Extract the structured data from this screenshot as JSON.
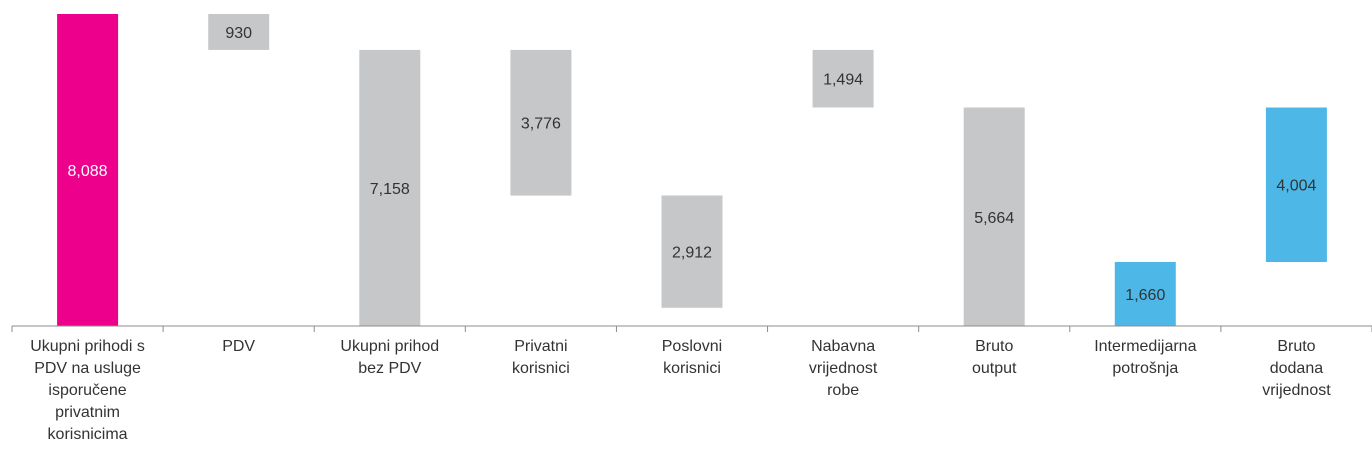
{
  "chart_data": {
    "type": "bar",
    "subtype": "waterfall",
    "title": "",
    "xlabel": "",
    "ylabel": "",
    "ylim": [
      0,
      8088
    ],
    "grid": false,
    "legend": "none",
    "categories": [
      [
        "Ukupni prihodi s",
        "PDV na usluge",
        "isporučene",
        "privatnim",
        "korisnicima"
      ],
      [
        "PDV"
      ],
      [
        "Ukupni prihod",
        "bez PDV"
      ],
      [
        "Privatni",
        "korisnici"
      ],
      [
        "Poslovni",
        "korisnici"
      ],
      [
        "Nabavna",
        "vrijednost",
        "robe"
      ],
      [
        "Bruto",
        "output"
      ],
      [
        "Intermedijarna",
        "potrošnja"
      ],
      [
        "Bruto",
        "dodana",
        "vrijednost"
      ]
    ],
    "bars": [
      {
        "label": "8,088",
        "value": 8088,
        "base": 0,
        "top": 8088,
        "color": "#ec008c",
        "text_color": "#ffffff"
      },
      {
        "label": "930",
        "value": 930,
        "base": 7158,
        "top": 8088,
        "color": "#c6c7c9",
        "text_color": "#333333"
      },
      {
        "label": "7,158",
        "value": 7158,
        "base": 0,
        "top": 7158,
        "color": "#c6c7c9",
        "text_color": "#333333"
      },
      {
        "label": "3,776",
        "value": 3776,
        "base": 3382,
        "top": 7158,
        "color": "#c6c7c9",
        "text_color": "#333333"
      },
      {
        "label": "2,912",
        "value": 2912,
        "base": 470,
        "top": 3382,
        "color": "#c6c7c9",
        "text_color": "#333333"
      },
      {
        "label": "1,494",
        "value": 1494,
        "base": 5664,
        "top": 7158,
        "color": "#c6c7c9",
        "text_color": "#333333"
      },
      {
        "label": "5,664",
        "value": 5664,
        "base": 0,
        "top": 5664,
        "color": "#c6c7c9",
        "text_color": "#333333"
      },
      {
        "label": "1,660",
        "value": 1660,
        "base": 0,
        "top": 1660,
        "color": "#4db8e8",
        "text_color": "#333333"
      },
      {
        "label": "4,004",
        "value": 4004,
        "base": 1660,
        "top": 5664,
        "color": "#4db8e8",
        "text_color": "#333333"
      }
    ]
  }
}
